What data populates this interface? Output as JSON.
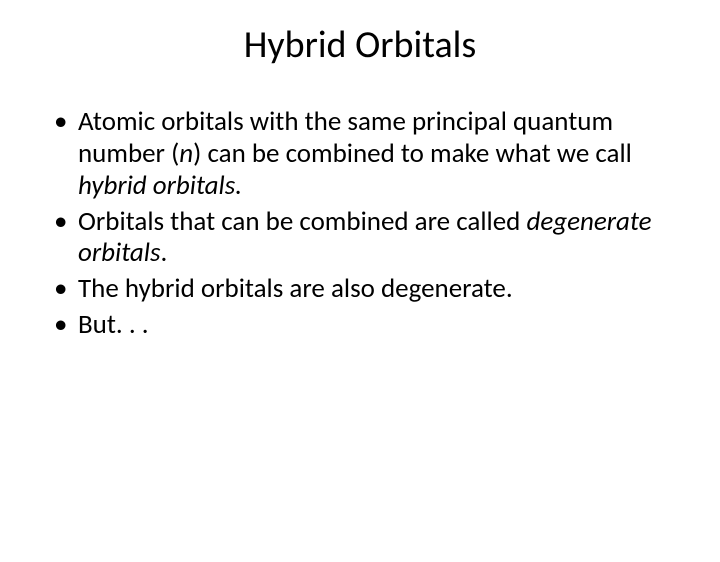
{
  "title": "Hybrid Orbitals",
  "bullets": {
    "b1_pre": "Atomic orbitals with the same principal quantum number (",
    "b1_n": "n",
    "b1_mid": ") can be combined to make what we call ",
    "b1_em": "hybrid orbitals.",
    "b2_pre": "Orbitals that can be combined are called ",
    "b2_em": "degenerate orbitals",
    "b2_post": ".",
    "b3": "The hybrid orbitals are also degenerate.",
    "b4": "But. . ."
  }
}
